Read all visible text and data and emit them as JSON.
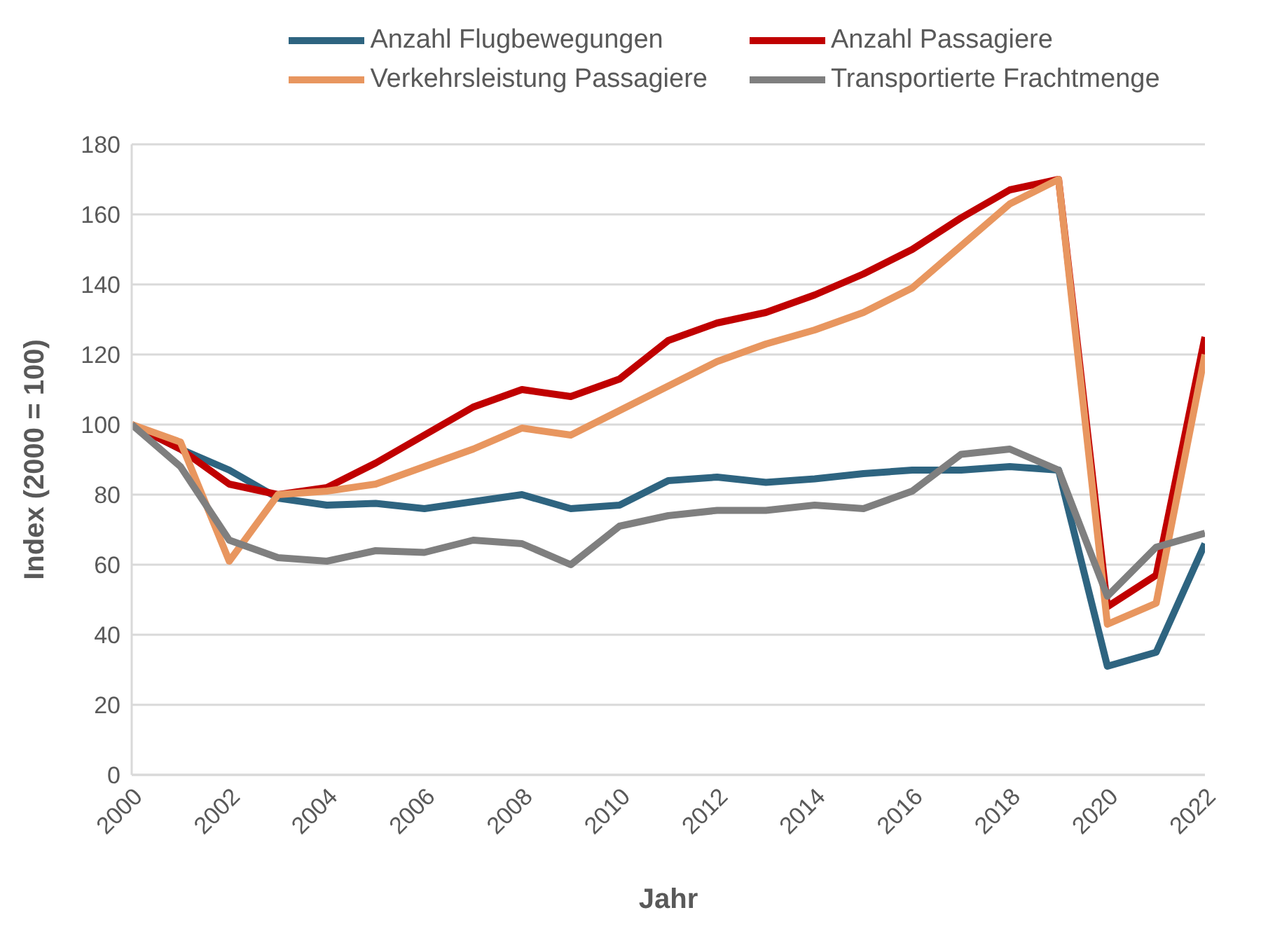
{
  "chart_data": {
    "type": "line",
    "xlabel": "Jahr",
    "ylabel": "Index (2000 = 100)",
    "x": [
      2000,
      2001,
      2002,
      2003,
      2004,
      2005,
      2006,
      2007,
      2008,
      2009,
      2010,
      2011,
      2012,
      2013,
      2014,
      2015,
      2016,
      2017,
      2018,
      2019,
      2020,
      2021,
      2022
    ],
    "series": [
      {
        "name": "Anzahl Flugbewegungen",
        "color": "#2e6480",
        "values": [
          100,
          93,
          87,
          79,
          77,
          77.5,
          76,
          78,
          80,
          76,
          77,
          84,
          85,
          83.5,
          84.5,
          86,
          87,
          87,
          88,
          87,
          31,
          35,
          66
        ]
      },
      {
        "name": "Anzahl Passagiere",
        "color": "#c00000",
        "values": [
          100,
          93,
          83,
          80,
          82,
          89,
          97,
          105,
          110,
          108,
          113,
          124,
          129,
          132,
          137,
          143,
          150,
          159,
          167,
          170,
          48,
          57,
          125
        ]
      },
      {
        "name": "Verkehrsleistung Passagiere",
        "color": "#e8965f",
        "values": [
          100,
          95,
          61,
          80,
          81,
          83,
          88,
          93,
          99,
          97,
          104,
          111,
          118,
          123,
          127,
          132,
          139,
          151,
          163,
          170,
          43,
          49,
          120
        ]
      },
      {
        "name": "Transportierte Frachtmenge",
        "color": "#7f7f7f",
        "values": [
          100,
          88,
          67,
          62,
          61,
          64,
          63.5,
          67,
          66,
          60,
          71,
          74,
          75.5,
          75.5,
          77,
          76,
          81,
          91.5,
          93,
          87,
          51,
          65,
          69
        ]
      }
    ],
    "xlim": [
      2000,
      2022
    ],
    "xticks": [
      2000,
      2002,
      2004,
      2006,
      2008,
      2010,
      2012,
      2014,
      2016,
      2018,
      2020,
      2022
    ],
    "ylim": [
      0,
      180
    ],
    "yticks": [
      0,
      20,
      40,
      60,
      80,
      100,
      120,
      140,
      160,
      180
    ],
    "grid": "y",
    "legend": "top",
    "marker": "none",
    "line_style": "solid"
  }
}
